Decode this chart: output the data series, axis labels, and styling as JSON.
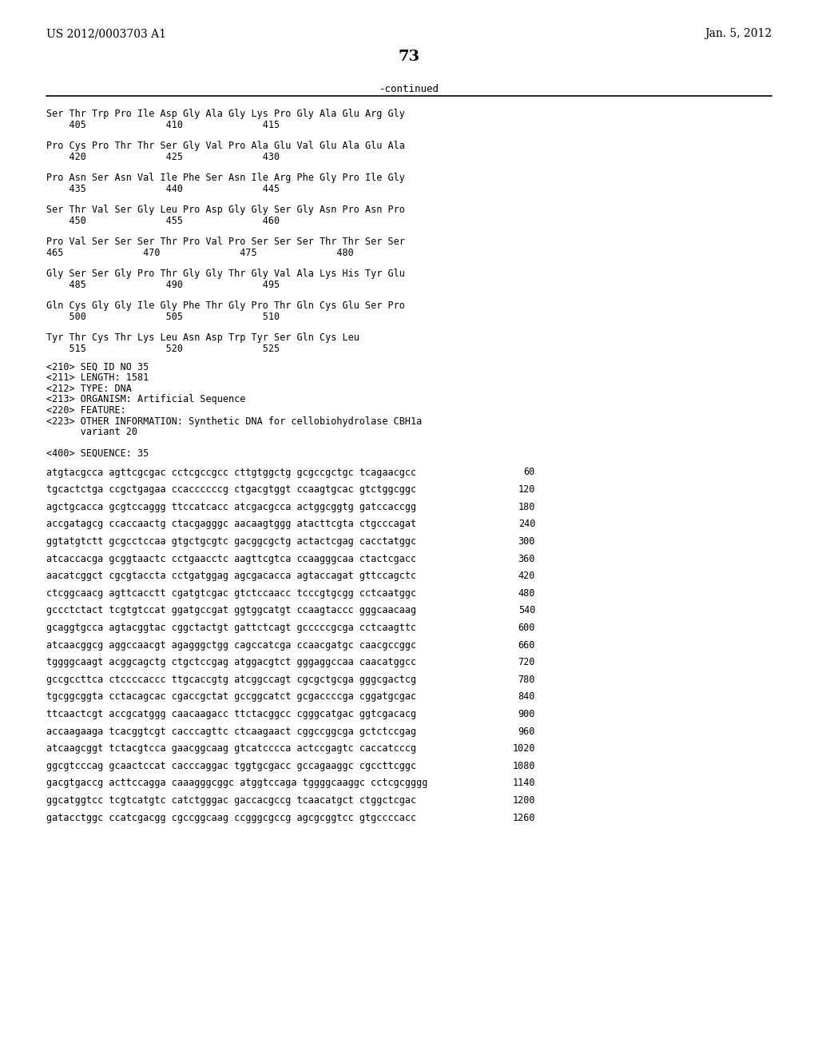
{
  "header_left": "US 2012/0003703 A1",
  "header_right": "Jan. 5, 2012",
  "page_number": "73",
  "continued_label": "-continued",
  "background_color": "#ffffff",
  "text_color": "#000000",
  "protein_lines": [
    "Ser Thr Trp Pro Ile Asp Gly Ala Gly Lys Pro Gly Ala Glu Arg Gly",
    "    405              410              415",
    "",
    "Pro Cys Pro Thr Thr Ser Gly Val Pro Ala Glu Val Glu Ala Glu Ala",
    "    420              425              430",
    "",
    "Pro Asn Ser Asn Val Ile Phe Ser Asn Ile Arg Phe Gly Pro Ile Gly",
    "    435              440              445",
    "",
    "Ser Thr Val Ser Gly Leu Pro Asp Gly Gly Ser Gly Asn Pro Asn Pro",
    "    450              455              460",
    "",
    "Pro Val Ser Ser Ser Thr Pro Val Pro Ser Ser Ser Thr Thr Ser Ser",
    "465              470              475              480",
    "",
    "Gly Ser Ser Gly Pro Thr Gly Gly Thr Gly Val Ala Lys His Tyr Glu",
    "    485              490              495",
    "",
    "Gln Cys Gly Gly Ile Gly Phe Thr Gly Pro Thr Gln Cys Glu Ser Pro",
    "    500              505              510",
    "",
    "Tyr Thr Cys Thr Lys Leu Asn Asp Trp Tyr Ser Gln Cys Leu",
    "    515              520              525"
  ],
  "seq_info_lines": [
    "<210> SEQ ID NO 35",
    "<211> LENGTH: 1581",
    "<212> TYPE: DNA",
    "<213> ORGANISM: Artificial Sequence",
    "<220> FEATURE:",
    "<223> OTHER INFORMATION: Synthetic DNA for cellobiohydrolase CBH1a",
    "      variant 20",
    "",
    "<400> SEQUENCE: 35"
  ],
  "dna_lines": [
    [
      "atgtacgcca agttcgcgac cctcgccgcc cttgtggctg gcgccgctgc tcagaacgcc",
      "60"
    ],
    [
      "tgcactctga ccgctgagaa ccaccccccg ctgacgtggt ccaagtgcac gtctggcggc",
      "120"
    ],
    [
      "agctgcacca gcgtccaggg ttccatcacc atcgacgcca actggcggtg gatccaccgg",
      "180"
    ],
    [
      "accgatagcg ccaccaactg ctacgagggc aacaagtggg atacttcgta ctgcccagat",
      "240"
    ],
    [
      "ggtatgtctt gcgcctccaa gtgctgcgtc gacggcgctg actactcgag cacctatggc",
      "300"
    ],
    [
      "atcaccacga gcggtaactc cctgaacctc aagttcgtca ccaagggcaa ctactcgacc",
      "360"
    ],
    [
      "aacatcggct cgcgtaccta cctgatggag agcgacacca agtaccagat gttccagctc",
      "420"
    ],
    [
      "ctcggcaacg agttcacctt cgatgtcgac gtctccaacc tcccgtgcgg cctcaatggc",
      "480"
    ],
    [
      "gccctctact tcgtgtccat ggatgccgat ggtggcatgt ccaagtaccc gggcaacaag",
      "540"
    ],
    [
      "gcaggtgcca agtacggtac cggctactgt gattctcagt gcccccgcga cctcaagttc",
      "600"
    ],
    [
      "atcaacggcg aggccaacgt agagggctgg cagccatcga ccaacgatgc caacgccggc",
      "660"
    ],
    [
      "tggggcaagt acggcagctg ctgctccgag atggacgtct gggaggccaa caacatggcc",
      "720"
    ],
    [
      "gccgccttca ctccccaccc ttgcaccgtg atcggccagt cgcgctgcga gggcgactcg",
      "780"
    ],
    [
      "tgcggcggta cctacagcac cgaccgctat gccggcatct gcgaccccga cggatgcgac",
      "840"
    ],
    [
      "ttcaactcgt accgcatggg caacaagacc ttctacggcc cgggcatgac ggtcgacacg",
      "900"
    ],
    [
      "accaagaaga tcacggtcgt cacccagttc ctcaagaact cggccggcga gctctccgag",
      "960"
    ],
    [
      "atcaagcggt tctacgtcca gaacggcaag gtcatcccca actccgagtc caccatcccg",
      "1020"
    ],
    [
      "ggcgtcccag gcaactccat cacccaggac tggtgcgacc gccagaaggc cgccttcggc",
      "1080"
    ],
    [
      "gacgtgaccg acttccagga caaagggcggc atggtccaga tggggcaaggc cctcgcgggg",
      "1140"
    ],
    [
      "ggcatggtcc tcgtcatgtc catctgggac gaccacgccg tcaacatgct ctggctcgac",
      "1200"
    ],
    [
      "gatacctggc ccatcgacgg cgccggcaag ccgggcgccg agcgcggtcc gtgccccacc",
      "1260"
    ]
  ]
}
